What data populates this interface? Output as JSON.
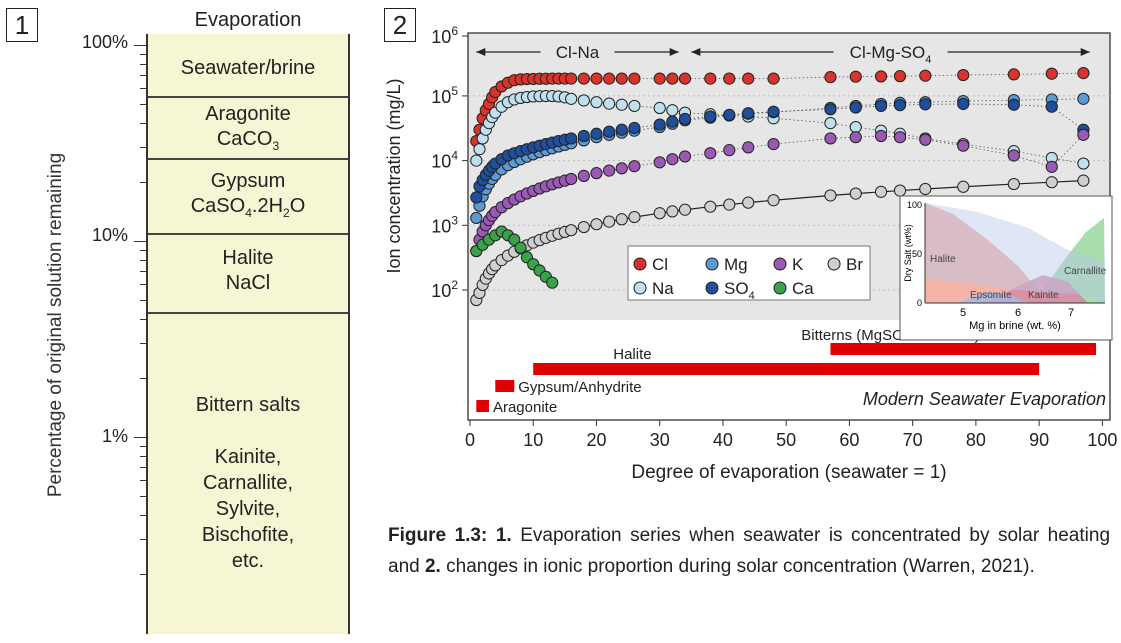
{
  "panel1": {
    "number": "1",
    "header": "Evaporation",
    "ylabel": "Percentage of original solution remaining",
    "ticks": [
      "100%",
      "10%",
      "1%"
    ],
    "zones": [
      {
        "lines": [
          "Seawater/brine"
        ]
      },
      {
        "lines": [
          "Aragonite",
          "CaCO3"
        ]
      },
      {
        "lines": [
          "Gypsum",
          "CaSO4.2H2O"
        ]
      },
      {
        "lines": [
          "Halite",
          "NaCl"
        ]
      },
      {
        "lines": [
          "Bittern salts",
          "",
          "Kainite,",
          "Carnallite,",
          "Sylvite,",
          "Bischofite,",
          "etc."
        ]
      }
    ]
  },
  "panel2": {
    "number": "2",
    "chart_data": {
      "type": "scatter",
      "xlabel": "Degree of evaporation (seawater = 1)",
      "ylabel": "Ion concentration (mg/L)",
      "xlim": [
        0,
        100
      ],
      "ylim_log10": [
        1.5,
        6
      ],
      "xticks": [
        0,
        10,
        20,
        30,
        40,
        50,
        60,
        70,
        80,
        90,
        100
      ],
      "yticks": [
        "10^2",
        "10^3",
        "10^4",
        "10^5",
        "10^6"
      ],
      "range_labels": [
        {
          "label": "Cl-Na",
          "from": 1,
          "to": 33
        },
        {
          "label": "Cl-Mg-SO4",
          "from": 35,
          "to": 98
        }
      ],
      "legend_title": "",
      "series": [
        {
          "name": "Cl",
          "color": "#d8342c",
          "x": [
            1,
            1.5,
            2,
            2.5,
            3,
            3.5,
            4,
            5,
            6,
            7,
            8,
            9,
            10,
            11,
            12,
            13,
            14,
            15,
            16,
            18,
            20,
            22,
            24,
            26,
            30,
            32,
            34,
            38,
            41,
            44,
            48,
            57,
            61,
            65,
            68,
            72,
            78,
            86,
            92,
            97
          ],
          "y": [
            20000,
            30000,
            45000,
            60000,
            75000,
            95000,
            115000,
            140000,
            160000,
            175000,
            180000,
            182000,
            183000,
            184000,
            184000,
            185000,
            185000,
            185000,
            185000,
            185000,
            185000,
            185000,
            185000,
            185000,
            185000,
            185000,
            185000,
            185000,
            185000,
            185000,
            185000,
            195000,
            198000,
            200000,
            202000,
            205000,
            210000,
            215000,
            220000,
            225000
          ]
        },
        {
          "name": "Na",
          "color": "#bfe0ee",
          "x": [
            1,
            1.5,
            2,
            2.5,
            3,
            3.5,
            4,
            5,
            6,
            7,
            8,
            9,
            10,
            11,
            12,
            13,
            14,
            15,
            16,
            18,
            20,
            22,
            24,
            26,
            30,
            32,
            34,
            38,
            41,
            44,
            48,
            57,
            61,
            65,
            68,
            72,
            78,
            86,
            92,
            97
          ],
          "y": [
            10000,
            15000,
            22000,
            30000,
            38000,
            47000,
            55000,
            68000,
            80000,
            88000,
            93000,
            96000,
            98000,
            99000,
            99500,
            99500,
            98000,
            95000,
            90000,
            85000,
            80000,
            76000,
            73000,
            70000,
            65000,
            60000,
            55000,
            52000,
            50000,
            48000,
            45000,
            38000,
            33000,
            29000,
            26000,
            22000,
            18000,
            14000,
            11000,
            9000
          ]
        },
        {
          "name": "Mg",
          "color": "#5b9bd5",
          "x": [
            1,
            1.5,
            2,
            2.5,
            3,
            3.5,
            4,
            5,
            6,
            7,
            8,
            9,
            10,
            11,
            12,
            13,
            14,
            15,
            16,
            18,
            20,
            22,
            24,
            26,
            30,
            32,
            34,
            38,
            41,
            44,
            48,
            57,
            61,
            65,
            68,
            72,
            78,
            86,
            92,
            97
          ],
          "y": [
            1300,
            2000,
            2800,
            3600,
            4400,
            5200,
            6000,
            7300,
            8500,
            9500,
            10500,
            11500,
            12500,
            13500,
            14500,
            15500,
            16500,
            17500,
            18500,
            20500,
            23000,
            25000,
            27000,
            29000,
            33000,
            37000,
            42000,
            46000,
            50000,
            53000,
            56000,
            65000,
            70000,
            75000,
            78000,
            80000,
            83000,
            86000,
            88000,
            90000
          ]
        },
        {
          "name": "SO4",
          "color": "#1f4e9c",
          "x": [
            1,
            1.5,
            2,
            2.5,
            3,
            3.5,
            4,
            5,
            6,
            7,
            8,
            9,
            10,
            11,
            12,
            13,
            14,
            15,
            16,
            18,
            20,
            22,
            24,
            26,
            30,
            32,
            34,
            38,
            41,
            44,
            48,
            57,
            61,
            65,
            68,
            72,
            78,
            86,
            92,
            97
          ],
          "y": [
            2700,
            4000,
            5000,
            6000,
            7000,
            8000,
            9000,
            10500,
            12000,
            13000,
            14000,
            15000,
            16000,
            17000,
            18000,
            19000,
            20000,
            21000,
            22000,
            24000,
            26000,
            28000,
            30000,
            32000,
            36000,
            40000,
            44000,
            48000,
            51000,
            54000,
            57000,
            62000,
            66000,
            70000,
            72000,
            74000,
            75000,
            73000,
            68000,
            30000
          ]
        },
        {
          "name": "K",
          "color": "#9b59b6",
          "x": [
            1,
            1.5,
            2,
            2.5,
            3,
            3.5,
            4,
            5,
            6,
            7,
            8,
            9,
            10,
            11,
            12,
            13,
            14,
            15,
            16,
            18,
            20,
            22,
            24,
            26,
            30,
            32,
            34,
            38,
            41,
            44,
            48,
            57,
            61,
            65,
            68,
            72,
            78,
            86,
            92,
            97
          ],
          "y": [
            400,
            600,
            800,
            1000,
            1200,
            1400,
            1600,
            1900,
            2200,
            2500,
            2800,
            3100,
            3400,
            3700,
            4000,
            4300,
            4600,
            4900,
            5200,
            5800,
            6400,
            7000,
            7600,
            8200,
            9400,
            10500,
            11600,
            13000,
            14500,
            16000,
            18000,
            22000,
            23000,
            24000,
            23000,
            21000,
            17000,
            12000,
            8000,
            25000
          ]
        },
        {
          "name": "Br",
          "color": "#cfcfcf",
          "x": [
            1,
            1.5,
            2,
            2.5,
            3,
            3.5,
            4,
            5,
            6,
            7,
            8,
            9,
            10,
            11,
            12,
            13,
            14,
            15,
            16,
            18,
            20,
            22,
            24,
            26,
            30,
            32,
            34,
            38,
            41,
            44,
            48,
            57,
            61,
            65,
            68,
            72,
            78,
            86,
            92,
            97
          ],
          "y": [
            70,
            90,
            120,
            150,
            180,
            210,
            240,
            290,
            340,
            390,
            440,
            490,
            540,
            590,
            640,
            690,
            740,
            790,
            840,
            940,
            1040,
            1140,
            1240,
            1340,
            1540,
            1640,
            1740,
            1940,
            2090,
            2240,
            2440,
            2890,
            3090,
            3290,
            3440,
            3640,
            3940,
            4340,
            4640,
            4900
          ]
        },
        {
          "name": "Ca",
          "color": "#3aa24b",
          "x": [
            1,
            2,
            3,
            4,
            5,
            6,
            7,
            8,
            9,
            10,
            11,
            12,
            13
          ],
          "y": [
            400,
            500,
            600,
            700,
            800,
            700,
            600,
            450,
            320,
            250,
            200,
            160,
            130
          ]
        }
      ],
      "mineral_bars": [
        {
          "label": "Aragonite",
          "from": 1,
          "to": 3
        },
        {
          "label": "Gypsum/Anhydrite",
          "from": 4,
          "to": 7
        },
        {
          "label": "Halite",
          "from": 10,
          "to": 90
        },
        {
          "label": "Bitterns (MgSO4-enriched)",
          "from": 57,
          "to": 99
        }
      ],
      "annotation": "Modern Seawater Evaporation",
      "inset": {
        "type": "area",
        "xlabel": "Mg in brine (wt. %)",
        "ylabel": "Dry Salt (wt%)",
        "xticks": [
          5,
          6,
          7
        ],
        "yticks": [
          0,
          50,
          100
        ],
        "regions": [
          "Halite",
          "Epsomite",
          "Kainite",
          "Carnallite"
        ]
      }
    }
  },
  "caption": {
    "label": "Figure 1.3:",
    "part1_num": "1.",
    "part1_text": "Evaporation series when seawater is concentrated by solar heating and",
    "part2_num": "2.",
    "part2_text": "changes in ionic proportion during solar concentration (Warren, 2021)."
  }
}
